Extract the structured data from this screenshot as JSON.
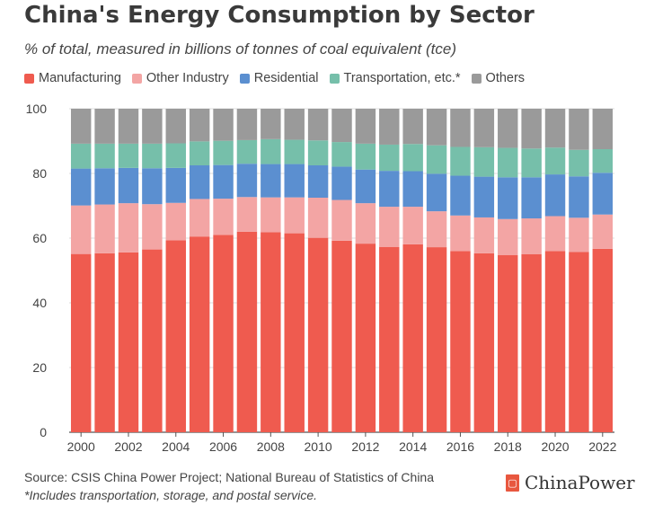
{
  "title": "China's Energy Consumption by Sector",
  "subtitle": "% of total, measured in billions of tonnes of coal equivalent (tce)",
  "source": "Source: CSIS China Power Project; National Bureau of Statistics of China",
  "note": "*Includes transportation, storage, and postal service.",
  "brand": "ChinaPower",
  "brand_icon": "chinapower-logo-icon",
  "chart_data": {
    "type": "bar",
    "stacked": true,
    "categories": [
      "2000",
      "2001",
      "2002",
      "2003",
      "2004",
      "2005",
      "2006",
      "2007",
      "2008",
      "2009",
      "2010",
      "2011",
      "2012",
      "2013",
      "2014",
      "2015",
      "2016",
      "2017",
      "2018",
      "2019",
      "2020",
      "2021",
      "2022"
    ],
    "x_tick_labels": [
      "2000",
      "2002",
      "2004",
      "2006",
      "2008",
      "2010",
      "2012",
      "2014",
      "2016",
      "2018",
      "2020",
      "2022"
    ],
    "y_ticks": [
      0,
      20,
      40,
      60,
      80,
      100
    ],
    "ylim": [
      0,
      100
    ],
    "grid": true,
    "legend_position": "top-left",
    "series": [
      {
        "name": "Manufacturing",
        "color": "#ef5b4f",
        "values": [
          55.1,
          55.3,
          55.6,
          56.5,
          59.3,
          60.5,
          61.0,
          62.0,
          61.8,
          61.5,
          60.1,
          59.2,
          58.3,
          57.3,
          58.1,
          57.2,
          56.0,
          55.3,
          54.8,
          55.0,
          56.0,
          55.7,
          56.7
        ]
      },
      {
        "name": "Other Industry",
        "color": "#f3a5a4",
        "values": [
          15.0,
          15.1,
          15.2,
          14.0,
          11.6,
          11.6,
          11.2,
          10.7,
          10.8,
          11.1,
          12.4,
          12.6,
          12.5,
          12.4,
          11.6,
          11.1,
          11.0,
          11.1,
          11.1,
          11.1,
          10.8,
          10.6,
          10.6
        ]
      },
      {
        "name": "Residential",
        "color": "#5b8fd0",
        "values": [
          11.4,
          11.2,
          10.9,
          11.1,
          10.8,
          10.4,
          10.4,
          10.3,
          10.3,
          10.3,
          10.0,
          10.3,
          10.4,
          11.1,
          11.0,
          11.6,
          12.3,
          12.6,
          12.9,
          12.7,
          12.9,
          12.8,
          12.9
        ]
      },
      {
        "name": "Transportation, etc.*",
        "color": "#76bfaa",
        "values": [
          7.7,
          7.6,
          7.5,
          7.6,
          7.6,
          7.4,
          7.5,
          7.3,
          7.7,
          7.5,
          7.7,
          7.6,
          8.0,
          8.1,
          8.4,
          8.8,
          8.9,
          9.1,
          9.1,
          8.9,
          8.3,
          8.2,
          7.3
        ]
      },
      {
        "name": "Others",
        "color": "#9a9a9a",
        "values": [
          10.8,
          10.8,
          10.8,
          10.8,
          10.7,
          10.1,
          9.9,
          9.7,
          9.4,
          9.6,
          9.8,
          10.3,
          10.8,
          11.1,
          10.9,
          11.3,
          11.8,
          11.9,
          12.1,
          12.3,
          12.0,
          12.7,
          12.5
        ]
      }
    ]
  }
}
